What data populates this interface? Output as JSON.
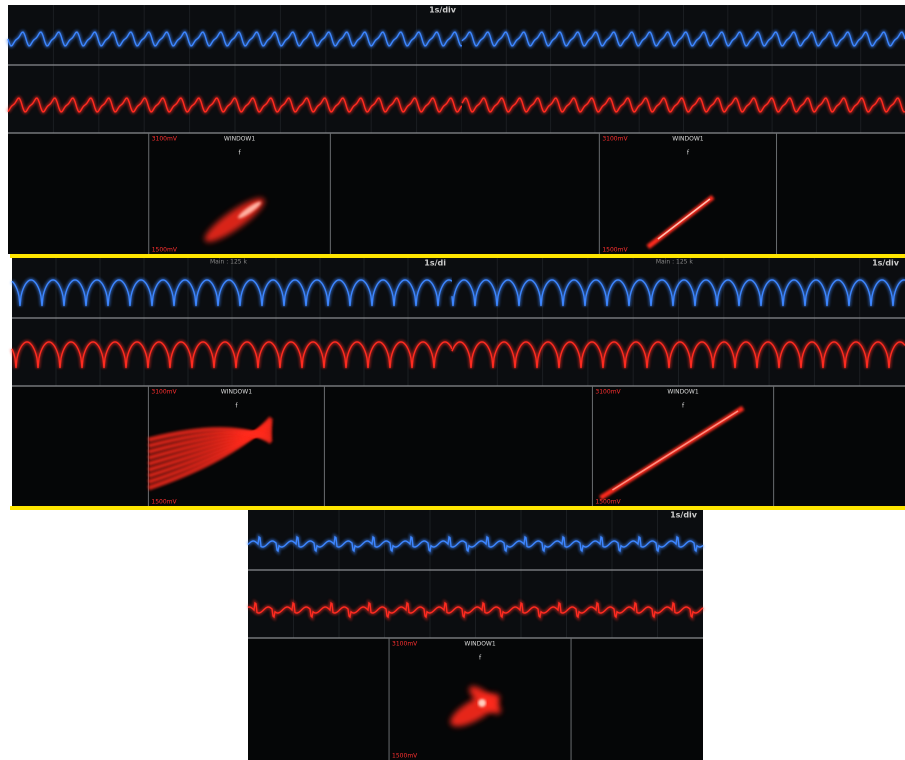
{
  "panels": [
    {
      "time_base": "1s/div",
      "window_title": "WINDOW1",
      "marker": "f",
      "y_top": "3100mV",
      "y_bottom": "1500mV"
    },
    {
      "window_title": "WINDOW1",
      "marker": "f",
      "y_top": "3100mV",
      "y_bottom": "1500mV"
    },
    {
      "main": "Main : 125 k",
      "time_base": "1s/di",
      "window_title": "WINDOW1",
      "marker": "f",
      "y_top": "3100mV",
      "y_bottom": "1500mV"
    },
    {
      "main": "Main : 125 k",
      "time_base": "1s/div",
      "window_title": "WINDOW1",
      "marker": "f",
      "y_top": "3100mV",
      "y_bottom": "1500mV"
    },
    {
      "time_base": "1s/div",
      "window_title": "WINDOW1",
      "marker": "f",
      "y_top": "3100mV",
      "y_bottom": "1500mV"
    }
  ]
}
